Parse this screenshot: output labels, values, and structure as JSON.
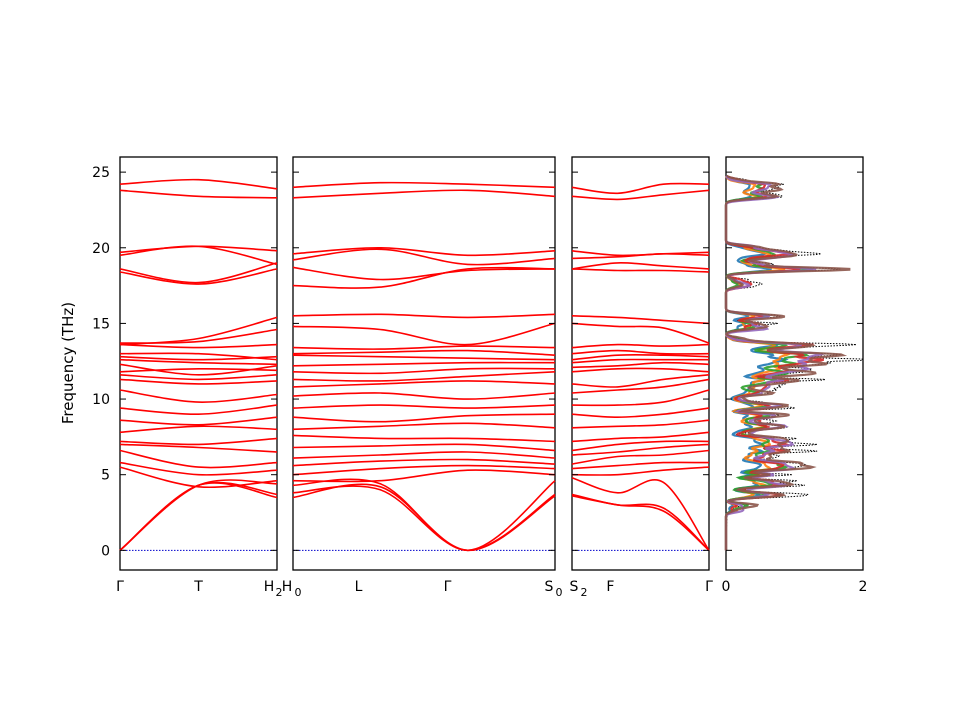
{
  "chart_data": {
    "type": "line",
    "ylabel": "Frequency (THz)",
    "ylim": [
      -1.3,
      26
    ],
    "yticks": [
      0,
      5,
      10,
      15,
      20,
      25
    ],
    "colors": {
      "bands": "#ff0000",
      "zero_line": "#0000cc",
      "total_dos": "#000000",
      "pdos": [
        "#1f77b4",
        "#ff7f0e",
        "#2ca02c",
        "#d62728",
        "#9467bd",
        "#8c564b"
      ]
    },
    "segments": [
      {
        "labels": [
          "Γ",
          "T",
          "H",
          "H"
        ],
        "label_subscripts": [
          "",
          "",
          "2",
          "0"
        ],
        "tick_positions": [
          0,
          0.5,
          1.0
        ],
        "bands": [
          [
            0,
            4.3,
            3.5
          ],
          [
            0,
            4.3,
            3.7
          ],
          [
            0,
            4.3,
            4.4
          ],
          [
            5.5,
            4.2,
            4.6
          ],
          [
            5.8,
            5.0,
            5.3
          ],
          [
            6.6,
            5.5,
            5.8
          ],
          [
            7.0,
            6.8,
            6.5
          ],
          [
            7.2,
            7.0,
            7.4
          ],
          [
            7.8,
            8.2,
            8.0
          ],
          [
            8.6,
            8.3,
            8.8
          ],
          [
            9.4,
            9.0,
            9.6
          ],
          [
            10.6,
            9.8,
            10.3
          ],
          [
            11.3,
            11.0,
            11.2
          ],
          [
            11.6,
            11.3,
            11.6
          ],
          [
            11.8,
            12.0,
            11.9
          ],
          [
            12.3,
            11.6,
            12.2
          ],
          [
            12.6,
            12.4,
            12.3
          ],
          [
            12.8,
            12.6,
            12.8
          ],
          [
            13.0,
            13.0,
            12.6
          ],
          [
            13.6,
            13.4,
            13.6
          ],
          [
            13.7,
            13.8,
            14.6
          ],
          [
            13.6,
            14.0,
            15.4
          ],
          [
            18.4,
            17.6,
            18.6
          ],
          [
            18.6,
            17.7,
            19.0
          ],
          [
            19.5,
            20.1,
            18.9
          ],
          [
            19.7,
            20.1,
            19.8
          ],
          [
            23.8,
            23.4,
            23.3
          ],
          [
            24.2,
            24.5,
            23.9
          ]
        ]
      },
      {
        "labels": [
          "L",
          "Γ",
          "S"
        ],
        "label_subscripts": [
          "",
          "",
          "0"
        ],
        "tick_positions": [
          0.25,
          0.59,
          1.0
        ],
        "bands": [
          [
            3.5,
            4.2,
            0,
            3.6
          ],
          [
            3.8,
            4.0,
            0,
            3.7
          ],
          [
            4.3,
            4.4,
            0,
            4.6
          ],
          [
            4.6,
            4.6,
            5.3,
            5.0
          ],
          [
            5.0,
            5.4,
            5.6,
            5.4
          ],
          [
            5.6,
            5.9,
            6.0,
            5.7
          ],
          [
            6.1,
            6.3,
            6.5,
            6.1
          ],
          [
            6.8,
            6.9,
            7.0,
            6.6
          ],
          [
            7.6,
            7.4,
            7.4,
            7.2
          ],
          [
            8.0,
            8.2,
            8.4,
            8.1
          ],
          [
            8.8,
            8.5,
            8.9,
            9.0
          ],
          [
            9.4,
            9.6,
            9.4,
            9.6
          ],
          [
            10.2,
            10.4,
            10.0,
            10.4
          ],
          [
            10.8,
            11.0,
            11.2,
            11.0
          ],
          [
            11.3,
            11.2,
            11.5,
            11.8
          ],
          [
            11.8,
            11.7,
            12.0,
            12.0
          ],
          [
            12.2,
            12.3,
            12.4,
            12.4
          ],
          [
            12.9,
            12.8,
            12.7,
            12.6
          ],
          [
            13.0,
            13.1,
            13.2,
            12.9
          ],
          [
            13.4,
            13.3,
            13.5,
            13.4
          ],
          [
            14.8,
            14.6,
            13.6,
            15.0
          ],
          [
            15.5,
            15.6,
            15.4,
            15.6
          ],
          [
            17.5,
            17.4,
            18.6,
            18.6
          ],
          [
            18.7,
            17.9,
            18.5,
            18.6
          ],
          [
            19.2,
            19.9,
            18.9,
            19.3
          ],
          [
            19.6,
            20.0,
            19.5,
            19.8
          ],
          [
            23.3,
            23.6,
            23.8,
            23.4
          ],
          [
            24.0,
            24.3,
            24.2,
            24.0
          ]
        ]
      },
      {
        "labels": [
          "S",
          "F",
          "Γ"
        ],
        "label_subscripts": [
          "2",
          "",
          ""
        ],
        "tick_positions": [
          0,
          0.28,
          1.0
        ],
        "bands": [
          [
            3.6,
            3.0,
            2.6,
            0
          ],
          [
            3.7,
            3.0,
            2.8,
            0
          ],
          [
            4.8,
            3.8,
            4.5,
            0
          ],
          [
            5.0,
            5.0,
            5.3,
            5.5
          ],
          [
            5.4,
            5.6,
            5.8,
            5.8
          ],
          [
            5.7,
            6.2,
            6.3,
            6.6
          ],
          [
            6.3,
            6.5,
            6.8,
            7.0
          ],
          [
            6.6,
            7.0,
            7.2,
            7.2
          ],
          [
            7.2,
            7.4,
            7.5,
            7.8
          ],
          [
            8.1,
            8.2,
            8.3,
            8.6
          ],
          [
            9.0,
            8.8,
            9.0,
            9.4
          ],
          [
            9.6,
            9.6,
            9.8,
            10.6
          ],
          [
            10.4,
            10.6,
            10.8,
            11.3
          ],
          [
            11.0,
            10.8,
            11.3,
            11.6
          ],
          [
            11.8,
            12.0,
            12.0,
            11.8
          ],
          [
            12.1,
            12.2,
            12.4,
            12.3
          ],
          [
            12.4,
            12.6,
            12.6,
            12.6
          ],
          [
            12.6,
            12.9,
            12.9,
            12.8
          ],
          [
            13.0,
            13.2,
            13.0,
            13.0
          ],
          [
            13.4,
            13.6,
            13.5,
            13.6
          ],
          [
            15.0,
            14.8,
            14.7,
            13.7
          ],
          [
            15.5,
            15.4,
            15.2,
            15.0
          ],
          [
            18.6,
            18.5,
            18.5,
            18.4
          ],
          [
            18.6,
            19.0,
            18.8,
            18.6
          ],
          [
            19.3,
            19.4,
            19.6,
            19.5
          ],
          [
            19.8,
            19.5,
            19.6,
            19.7
          ],
          [
            23.4,
            23.2,
            23.5,
            23.8
          ],
          [
            24.0,
            23.6,
            24.2,
            24.2
          ]
        ]
      }
    ],
    "dos": {
      "xlim": [
        0,
        2
      ],
      "xticks": [
        0,
        2
      ]
    }
  }
}
